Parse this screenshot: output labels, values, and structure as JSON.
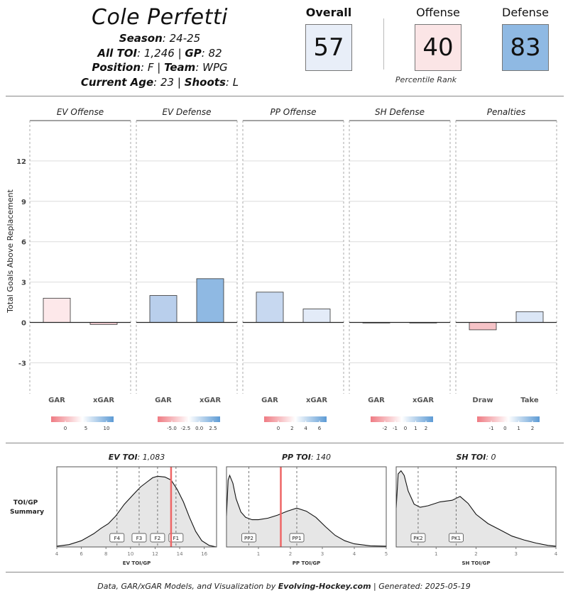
{
  "header": {
    "player_name": "Cole Perfetti",
    "season_label": "Season",
    "season": "24-25",
    "toi_label": "All TOI",
    "toi": "1,246",
    "gp_label": "GP",
    "gp": "82",
    "position_label": "Position",
    "position": "F",
    "team_label": "Team",
    "team": "WPG",
    "age_label": "Current Age",
    "age": "23",
    "shoots_label": "Shoots",
    "shoots": "L"
  },
  "ranks": {
    "overall_label": "Overall",
    "overall": "57",
    "overall_color": "#e8eef8",
    "offense_label": "Offense",
    "offense": "40",
    "offense_color": "#fbe5e6",
    "defense_label": "Defense",
    "defense": "83",
    "defense_color": "#8fb9e3",
    "caption": "Percentile Rank"
  },
  "chart_data": [
    {
      "type": "bar",
      "ylabel": "Total Goals Above Replacement",
      "yticks": [
        -3,
        0,
        3,
        6,
        9,
        12
      ],
      "ylim": [
        -5.3,
        15
      ],
      "grid": true,
      "panels": [
        {
          "title": "EV Offense",
          "categories": [
            "GAR",
            "xGAR"
          ],
          "values": [
            1.8,
            -0.15
          ],
          "colors": [
            "#fde8ea",
            "#fad5d8"
          ],
          "legend_ticks": [
            "0",
            "5",
            "10"
          ],
          "legend_gradient": [
            "#ef7b83",
            "#ffffff",
            "#5d9bd5"
          ]
        },
        {
          "title": "EV Defense",
          "categories": [
            "GAR",
            "xGAR"
          ],
          "values": [
            2.0,
            3.25
          ],
          "colors": [
            "#b9cfec",
            "#8fb9e3"
          ],
          "legend_ticks": [
            "-5.0",
            "-2.5",
            "0.0",
            "2.5"
          ],
          "legend_gradient": [
            "#ef7b83",
            "#ffffff",
            "#5d9bd5"
          ]
        },
        {
          "title": "PP Offense",
          "categories": [
            "GAR",
            "xGAR"
          ],
          "values": [
            2.25,
            1.0
          ],
          "colors": [
            "#c7d8f0",
            "#e3ebf8"
          ],
          "legend_ticks": [
            "0",
            "2",
            "4",
            "6"
          ],
          "legend_gradient": [
            "#ef7b83",
            "#ffffff",
            "#5d9bd5"
          ]
        },
        {
          "title": "SH Defense",
          "categories": [
            "GAR",
            "xGAR"
          ],
          "values": [
            0.0,
            0.0
          ],
          "colors": [
            "#eeeeee",
            "#eeeeee"
          ],
          "legend_ticks": [
            "-2",
            "-1",
            "0",
            "1",
            "2"
          ],
          "legend_gradient": [
            "#ef7b83",
            "#ffffff",
            "#5d9bd5"
          ]
        },
        {
          "title": "Penalties",
          "categories": [
            "Draw",
            "Take"
          ],
          "values": [
            -0.55,
            0.8
          ],
          "colors": [
            "#f6c3c7",
            "#dbe6f6"
          ],
          "legend_ticks": [
            "-1",
            "0",
            "1",
            "2"
          ],
          "legend_gradient": [
            "#ef7b83",
            "#ffffff",
            "#5d9bd5"
          ]
        }
      ]
    },
    {
      "type": "area",
      "row_label": "TOI/GP Summary",
      "panels": [
        {
          "title_label": "EV TOI",
          "title_value": "1,083",
          "xlabel": "EV TOI/GP",
          "xlim": [
            4,
            17
          ],
          "xticks": [
            4,
            6,
            8,
            10,
            12,
            14,
            16
          ],
          "density": [
            [
              4.0,
              0.01
            ],
            [
              5.0,
              0.03
            ],
            [
              6.0,
              0.08
            ],
            [
              7.0,
              0.17
            ],
            [
              7.6,
              0.24
            ],
            [
              8.2,
              0.3
            ],
            [
              8.8,
              0.4
            ],
            [
              9.5,
              0.55
            ],
            [
              10.2,
              0.67
            ],
            [
              10.8,
              0.77
            ],
            [
              11.3,
              0.83
            ],
            [
              11.8,
              0.89
            ],
            [
              12.2,
              0.91
            ],
            [
              12.8,
              0.9
            ],
            [
              13.3,
              0.86
            ],
            [
              13.8,
              0.74
            ],
            [
              14.3,
              0.58
            ],
            [
              14.8,
              0.38
            ],
            [
              15.3,
              0.2
            ],
            [
              15.8,
              0.08
            ],
            [
              16.4,
              0.02
            ],
            [
              17.0,
              0.0
            ]
          ],
          "markers": [
            {
              "label": "F4",
              "x": 8.9
            },
            {
              "label": "F3",
              "x": 10.7
            },
            {
              "label": "F2",
              "x": 12.2
            },
            {
              "label": "F1",
              "x": 13.7
            }
          ],
          "player_value": 13.3
        },
        {
          "title_label": "PP TOI",
          "title_value": "140",
          "xlabel": "PP TOI/GP",
          "xlim": [
            0,
            5
          ],
          "xticks": [
            1,
            2,
            3,
            4,
            5
          ],
          "density": [
            [
              0.0,
              0.4
            ],
            [
              0.05,
              0.86
            ],
            [
              0.1,
              0.92
            ],
            [
              0.2,
              0.82
            ],
            [
              0.3,
              0.62
            ],
            [
              0.45,
              0.45
            ],
            [
              0.6,
              0.38
            ],
            [
              0.8,
              0.35
            ],
            [
              1.0,
              0.35
            ],
            [
              1.3,
              0.37
            ],
            [
              1.6,
              0.41
            ],
            [
              1.9,
              0.46
            ],
            [
              2.2,
              0.5
            ],
            [
              2.5,
              0.46
            ],
            [
              2.8,
              0.38
            ],
            [
              3.1,
              0.26
            ],
            [
              3.4,
              0.15
            ],
            [
              3.7,
              0.08
            ],
            [
              4.0,
              0.04
            ],
            [
              4.5,
              0.015
            ],
            [
              5.0,
              0.01
            ]
          ],
          "markers": [
            {
              "label": "PP2",
              "x": 0.7
            },
            {
              "label": "PP1",
              "x": 2.2
            }
          ],
          "player_value": 1.7
        },
        {
          "title_label": "SH TOI",
          "title_value": "0",
          "xlabel": "SH TOI/GP",
          "xlim": [
            0,
            4
          ],
          "xticks": [
            1,
            2,
            3,
            4
          ],
          "density": [
            [
              0.0,
              0.5
            ],
            [
              0.05,
              0.94
            ],
            [
              0.12,
              0.98
            ],
            [
              0.2,
              0.92
            ],
            [
              0.3,
              0.72
            ],
            [
              0.45,
              0.55
            ],
            [
              0.6,
              0.51
            ],
            [
              0.8,
              0.53
            ],
            [
              1.1,
              0.58
            ],
            [
              1.4,
              0.6
            ],
            [
              1.6,
              0.65
            ],
            [
              1.8,
              0.56
            ],
            [
              2.0,
              0.42
            ],
            [
              2.3,
              0.3
            ],
            [
              2.6,
              0.22
            ],
            [
              2.9,
              0.14
            ],
            [
              3.2,
              0.09
            ],
            [
              3.5,
              0.05
            ],
            [
              3.8,
              0.02
            ],
            [
              4.0,
              0.01
            ]
          ],
          "markers": [
            {
              "label": "PK2",
              "x": 0.55
            },
            {
              "label": "PK1",
              "x": 1.5
            }
          ],
          "player_value": null
        }
      ]
    }
  ],
  "footer": {
    "prefix": "Data, GAR/xGAR Models, and Visualization by",
    "brand": "Evolving-Hockey.com",
    "suffix": "| Generated: 2025-05-19"
  }
}
